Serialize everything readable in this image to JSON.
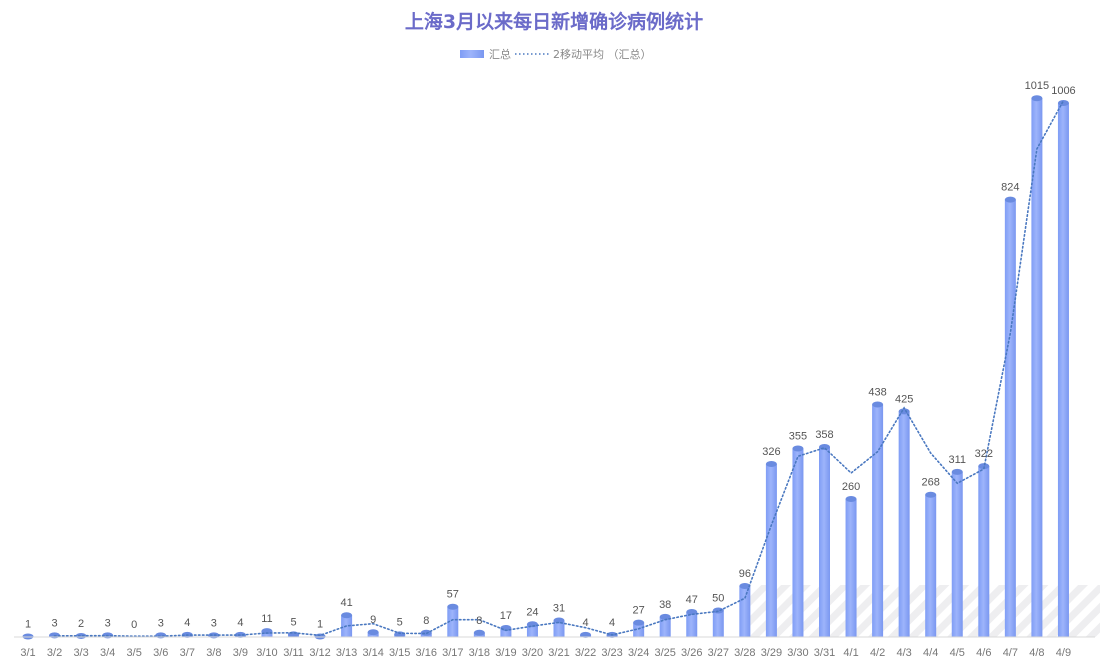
{
  "chart_data": {
    "type": "bar",
    "title": "上海3月以来每日新增确诊病例统计",
    "categories": [
      "3/1",
      "3/2",
      "3/3",
      "3/4",
      "3/5",
      "3/6",
      "3/7",
      "3/8",
      "3/9",
      "3/10",
      "3/11",
      "3/12",
      "3/13",
      "3/14",
      "3/15",
      "3/16",
      "3/17",
      "3/18",
      "3/19",
      "3/20",
      "3/21",
      "3/22",
      "3/23",
      "3/24",
      "3/25",
      "3/26",
      "3/27",
      "3/28",
      "3/29",
      "3/30",
      "3/31",
      "4/1",
      "4/2",
      "4/3",
      "4/4",
      "4/5",
      "4/6",
      "4/7",
      "4/8",
      "4/9"
    ],
    "series": [
      {
        "name": "汇总",
        "type": "bar",
        "values": [
          1,
          3,
          2,
          3,
          0,
          3,
          4,
          3,
          4,
          11,
          5,
          1,
          41,
          9,
          5,
          8,
          57,
          8,
          17,
          24,
          31,
          4,
          4,
          27,
          38,
          47,
          50,
          96,
          326,
          355,
          358,
          260,
          438,
          425,
          268,
          311,
          322,
          824,
          1015,
          1006
        ]
      },
      {
        "name": "2移动平均 （汇总）",
        "type": "line",
        "style": "dotted",
        "values": [
          null,
          2,
          2.5,
          2.5,
          1.5,
          1.5,
          3.5,
          3.5,
          3.5,
          7.5,
          8,
          3,
          21,
          25,
          7,
          6.5,
          32.5,
          32.5,
          12.5,
          20.5,
          27.5,
          17.5,
          4,
          15.5,
          32.5,
          42.5,
          48.5,
          73,
          211,
          340.5,
          356.5,
          309,
          349,
          431.5,
          346.5,
          289.5,
          316.5,
          573,
          919.5,
          1010.5
        ]
      }
    ],
    "ylim": [
      0,
      1200
    ],
    "grid": false,
    "legend_position": "top-center",
    "colors": {
      "bar": "#8aa4f8",
      "bar_top": "#6a8be0",
      "line": "#4a78c0",
      "title": "#6b6bc9",
      "label": "#555555",
      "tick": "#777777"
    }
  }
}
